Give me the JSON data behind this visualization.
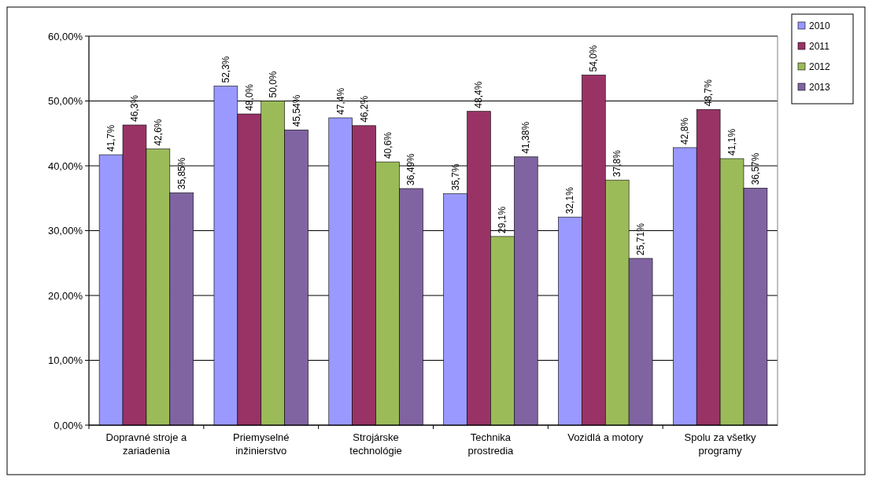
{
  "chart_data": {
    "type": "bar",
    "categories": [
      "Dopravné stroje a zariadenia",
      "Priemyselné inžinierstvo",
      "Strojárske technológie",
      "Technika prostredia",
      "Vozidlá a motory",
      "Spolu za všetky programy"
    ],
    "series": [
      {
        "name": "2010",
        "color": "#9999ff",
        "values": [
          41.7,
          52.3,
          47.4,
          35.7,
          32.1,
          42.8
        ],
        "value_labels": [
          "41,7%",
          "52,3%",
          "47,4%",
          "35,7%",
          "32,1%",
          "42,8%"
        ]
      },
      {
        "name": "2011",
        "color": "#993366",
        "values": [
          46.3,
          48.0,
          46.2,
          48.4,
          54.0,
          48.7
        ],
        "value_labels": [
          "46,3%",
          "48,0%",
          "46,2%",
          "48,4%",
          "54,0%",
          "48,7%"
        ]
      },
      {
        "name": "2012",
        "color": "#9bbb59",
        "values": [
          42.6,
          50.0,
          40.6,
          29.1,
          37.8,
          41.1
        ],
        "value_labels": [
          "42,6%",
          "50,0%",
          "40,6%",
          "29,1%",
          "37,8%",
          "41,1%"
        ]
      },
      {
        "name": "2013",
        "color": "#8064a2",
        "values": [
          35.85,
          45.54,
          36.49,
          41.38,
          25.71,
          36.57
        ],
        "value_labels": [
          "35,85%",
          "45,54%",
          "36,49%",
          "41,38%",
          "25,71%",
          "36,57%"
        ]
      }
    ],
    "ylim": [
      0,
      60
    ],
    "yticks": [
      {
        "value": 0,
        "label": "0,00%"
      },
      {
        "value": 10,
        "label": "10,00%"
      },
      {
        "value": 20,
        "label": "20,00%"
      },
      {
        "value": 30,
        "label": "30,00%"
      },
      {
        "value": 40,
        "label": "40,00%"
      },
      {
        "value": 50,
        "label": "50,00%"
      },
      {
        "value": 60,
        "label": "60,00%"
      }
    ],
    "grid": "y",
    "legend": "top right"
  }
}
